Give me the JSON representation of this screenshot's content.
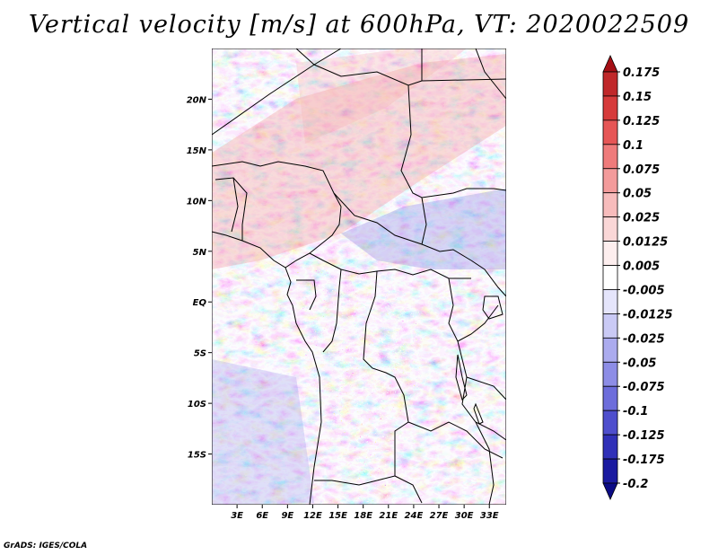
{
  "title": "Vertical velocity [m/s] at 600hPa, VT: 2020022509",
  "credit": "GrADS: IGES/COLA",
  "map": {
    "lon_range": [
      0,
      35
    ],
    "lat_range": [
      -20,
      25
    ],
    "lat_ticks": [
      {
        "lat": 20,
        "label": "20N"
      },
      {
        "lat": 15,
        "label": "15N"
      },
      {
        "lat": 10,
        "label": "10N"
      },
      {
        "lat": 5,
        "label": "5N"
      },
      {
        "lat": 0,
        "label": "EQ"
      },
      {
        "lat": -5,
        "label": "5S"
      },
      {
        "lat": -10,
        "label": "10S"
      },
      {
        "lat": -15,
        "label": "15S"
      }
    ],
    "lon_ticks": [
      {
        "lon": 3,
        "label": "3E"
      },
      {
        "lon": 6,
        "label": "6E"
      },
      {
        "lon": 9,
        "label": "9E"
      },
      {
        "lon": 12,
        "label": "12E"
      },
      {
        "lon": 15,
        "label": "15E"
      },
      {
        "lon": 18,
        "label": "18E"
      },
      {
        "lon": 21,
        "label": "21E"
      },
      {
        "lon": 24,
        "label": "24E"
      },
      {
        "lon": 27,
        "label": "27E"
      },
      {
        "lon": 30,
        "label": "30E"
      },
      {
        "lon": 33,
        "label": "33E"
      }
    ]
  },
  "colorbar": {
    "units": "m/s",
    "levels": [
      "0.175",
      "0.15",
      "0.125",
      "0.1",
      "0.075",
      "0.05",
      "0.025",
      "0.0125",
      "0.005",
      "-0.005",
      "-0.0125",
      "-0.025",
      "-0.05",
      "-0.075",
      "-0.1",
      "-0.125",
      "-0.175",
      "-0.2"
    ],
    "colors": [
      "#a50f15",
      "#c0282a",
      "#d63b3b",
      "#e65656",
      "#ef7b7b",
      "#f39b9b",
      "#f7bcbc",
      "#fad7d7",
      "#fdeeee",
      "#ffffff",
      "#e5e5fb",
      "#cacaf5",
      "#ababee",
      "#8d8de6",
      "#6d6ddb",
      "#4e4ecd",
      "#3030b8",
      "#1a1aa0",
      "#0b0b85"
    ]
  }
}
